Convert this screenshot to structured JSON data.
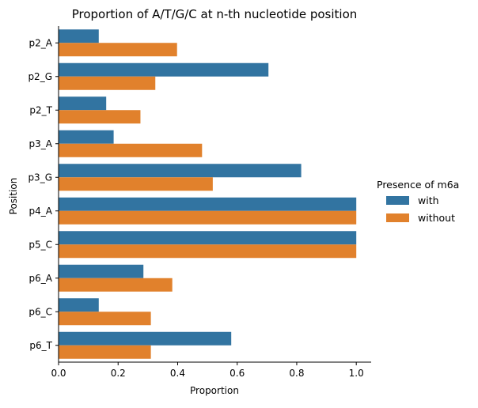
{
  "chart_data": {
    "type": "bar",
    "orientation": "horizontal",
    "title": "Proportion of A/T/G/C at n-th nucleotide position",
    "xlabel": "Proportion",
    "ylabel": "Position",
    "xlim": [
      0,
      1.05
    ],
    "xticks": [
      "0.0",
      "0.2",
      "0.4",
      "0.6",
      "0.8",
      "1.0"
    ],
    "grid": false,
    "legend_placement": "right",
    "categories": [
      "p2_A",
      "p2_G",
      "p2_T",
      "p3_A",
      "p3_G",
      "p4_A",
      "p5_C",
      "p6_A",
      "p6_C",
      "p6_T"
    ],
    "legend_title": "Presence of m6a",
    "series": [
      {
        "name": "with",
        "color": "#3274a1",
        "values": [
          0.135,
          0.705,
          0.16,
          0.185,
          0.815,
          1.0,
          1.0,
          0.285,
          0.135,
          0.58
        ]
      },
      {
        "name": "without",
        "color": "#e1812c",
        "values": [
          0.398,
          0.325,
          0.275,
          0.482,
          0.518,
          1.0,
          1.0,
          0.382,
          0.31,
          0.31
        ]
      }
    ]
  }
}
